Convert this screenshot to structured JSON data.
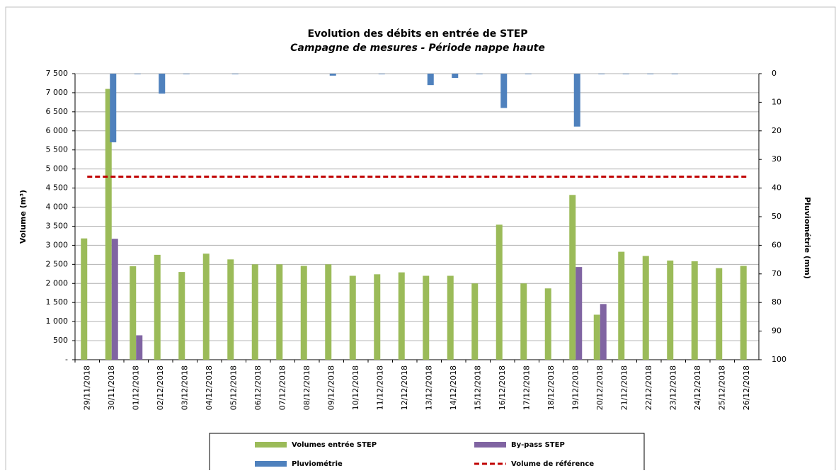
{
  "chart_data": {
    "type": "bar",
    "title": "Evolution des débits en entrée de STEP",
    "subtitle": "Campagne de mesures - Période nappe haute",
    "ylabel": "Volume (m³)",
    "y2label": "Pluviométrie (mm)",
    "categories": [
      "29/11/2018",
      "30/11/2018",
      "01/12/2018",
      "02/12/2018",
      "03/12/2018",
      "04/12/2018",
      "05/12/2018",
      "06/12/2018",
      "07/12/2018",
      "08/12/2018",
      "09/12/2018",
      "10/12/2018",
      "11/12/2018",
      "12/12/2018",
      "13/12/2018",
      "14/12/2018",
      "15/12/2018",
      "16/12/2018",
      "17/12/2018",
      "18/12/2018",
      "19/12/2018",
      "20/12/2018",
      "21/12/2018",
      "22/12/2018",
      "23/12/2018",
      "24/12/2018",
      "25/12/2018",
      "26/12/2018"
    ],
    "series": [
      {
        "name": "Volumes entrée STEP",
        "color": "#9bbb59",
        "values": [
          3180,
          7100,
          2450,
          2750,
          2300,
          2780,
          2630,
          2500,
          2500,
          2460,
          2500,
          2200,
          2240,
          2290,
          2200,
          2200,
          2000,
          3540,
          2000,
          1870,
          4320,
          1180,
          2830,
          2720,
          2600,
          2580,
          2400,
          2460
        ]
      },
      {
        "name": "By-pass STEP",
        "color": "#8064a2",
        "values": [
          null,
          3170,
          640,
          null,
          null,
          null,
          null,
          null,
          null,
          null,
          null,
          null,
          null,
          null,
          null,
          null,
          null,
          null,
          null,
          null,
          2430,
          1460,
          null,
          null,
          null,
          null,
          null,
          null
        ]
      },
      {
        "name": "Pluviométrie",
        "color": "#4f81bd",
        "axis": "y2",
        "values": [
          0,
          24,
          0.2,
          7,
          0.2,
          0,
          0.2,
          0,
          0,
          0,
          0.7,
          0,
          0.2,
          0,
          4,
          1.5,
          0.2,
          12,
          0.2,
          0,
          18.5,
          0.2,
          0.2,
          0.2,
          0.2,
          0,
          0,
          0
        ]
      }
    ],
    "reference": {
      "name": "Volume de référence",
      "value": 4800,
      "color": "#c00000"
    },
    "ylim": [
      0,
      7500
    ],
    "yticks": [
      {
        "value": 0,
        "label": "-"
      },
      500,
      {
        "value": 1000,
        "label": "1 000"
      },
      {
        "value": 1500,
        "label": "1 500"
      },
      {
        "value": 2000,
        "label": "2 000"
      },
      {
        "value": 2500,
        "label": "2 500"
      },
      {
        "value": 3000,
        "label": "3 000"
      },
      {
        "value": 3500,
        "label": "3 500"
      },
      {
        "value": 4000,
        "label": "4 000"
      },
      {
        "value": 4500,
        "label": "4 500"
      },
      {
        "value": 5000,
        "label": "5 000"
      },
      {
        "value": 5500,
        "label": "5 500"
      },
      {
        "value": 6000,
        "label": "6 000"
      },
      {
        "value": 6500,
        "label": "6 500"
      },
      {
        "value": 7000,
        "label": "7 000"
      },
      {
        "value": 7500,
        "label": "7 500"
      }
    ],
    "y2lim": [
      0,
      100
    ],
    "y2ticks": [
      0,
      10,
      20,
      30,
      40,
      50,
      60,
      70,
      80,
      90,
      100
    ],
    "y2reversed": true,
    "grid": true
  }
}
